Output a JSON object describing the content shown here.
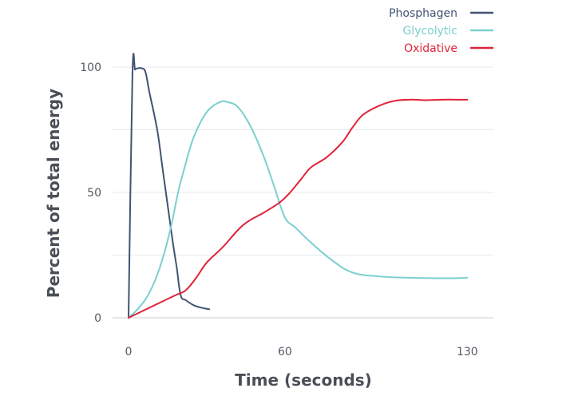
{
  "chart_data": {
    "type": "line",
    "xlabel": "Time (seconds)",
    "ylabel": "Percent of total energy",
    "xlim": [
      0,
      140
    ],
    "ylim": [
      0,
      100
    ],
    "xticks": [
      {
        "value": 0,
        "label": "0"
      },
      {
        "value": 60,
        "label": "60"
      },
      {
        "value": 130,
        "label": "130"
      }
    ],
    "yticks": [
      {
        "value": 0,
        "label": "0"
      },
      {
        "value": 50,
        "label": "50"
      },
      {
        "value": 100,
        "label": "100"
      }
    ],
    "grid": true,
    "legend_position": "top-right",
    "series": [
      {
        "name": "Phosphagen",
        "color": "#425372",
        "x": [
          0,
          1.5,
          2.5,
          3.5,
          5,
          6.5,
          8,
          11,
          13,
          15,
          17,
          18.5,
          20,
          22,
          25,
          28,
          31
        ],
        "y": [
          0,
          97,
          99,
          99.5,
          99.5,
          98,
          90,
          75,
          60,
          45,
          30,
          20,
          9,
          7,
          5,
          4,
          3.4
        ]
      },
      {
        "name": "Glycolytic",
        "color": "#7bcfd0",
        "x": [
          0,
          4,
          8,
          12,
          16,
          19,
          21,
          25,
          30,
          35,
          38,
          42,
          47,
          52,
          56,
          60,
          64,
          70,
          78,
          86,
          96,
          106,
          116,
          126,
          130
        ],
        "y": [
          0,
          4,
          10,
          20,
          35,
          50,
          58,
          72,
          82,
          86,
          86,
          84,
          76,
          64,
          52,
          40,
          36,
          30,
          23,
          18,
          16.5,
          16,
          15.8,
          15.8,
          16
        ]
      },
      {
        "name": "Oxidative",
        "color": "#e0233b",
        "x": [
          0,
          6,
          12,
          18,
          22,
          26,
          30,
          36,
          44,
          52,
          58,
          62,
          66,
          70,
          76,
          82,
          86,
          90,
          96,
          102,
          108,
          114,
          120,
          126,
          130
        ],
        "y": [
          0,
          3,
          6,
          9,
          11,
          16,
          22,
          28,
          37,
          42,
          46,
          50,
          55,
          60,
          64,
          70,
          76,
          81,
          84.5,
          86.5,
          87,
          86.8,
          87,
          87,
          87
        ]
      }
    ]
  }
}
